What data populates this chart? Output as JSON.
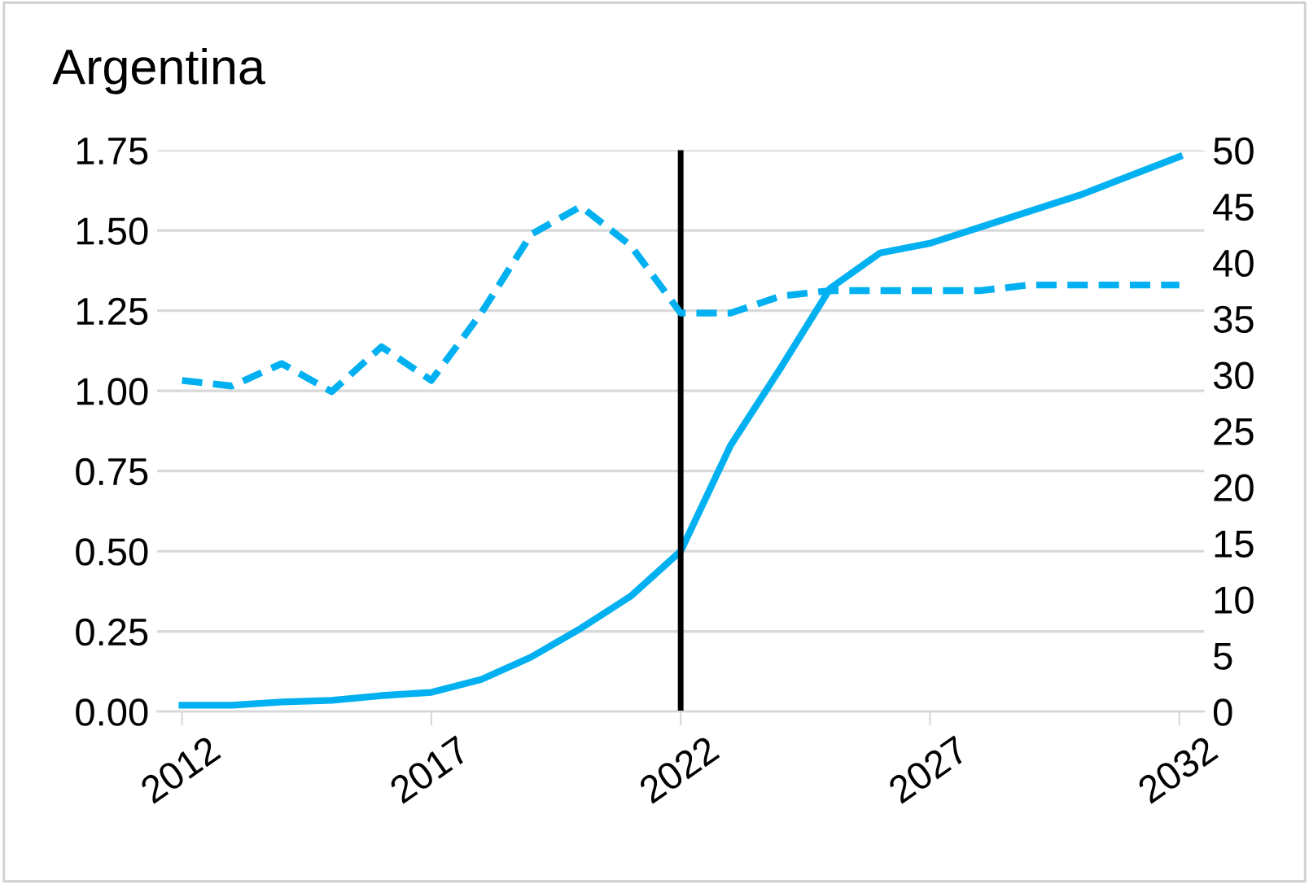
{
  "chart_data": {
    "type": "line",
    "title": "Argentina",
    "x": [
      2012,
      2013,
      2014,
      2015,
      2016,
      2017,
      2018,
      2019,
      2020,
      2021,
      2022,
      2023,
      2024,
      2025,
      2026,
      2027,
      2028,
      2029,
      2030,
      2031,
      2032
    ],
    "series": [
      {
        "color": "#00b0f0",
        "line_style": "solid",
        "values": [
          0.02,
          0.02,
          0.03,
          0.035,
          0.05,
          0.06,
          0.1,
          0.17,
          0.26,
          0.36,
          0.5,
          0.83,
          1.07,
          1.32,
          1.43,
          1.46,
          1.51,
          1.56,
          1.61,
          1.67,
          1.73
        ]
      },
      {
        "color": "#00b0f0",
        "line_style": "dashed",
        "axis": "y2",
        "values": [
          29.5,
          29,
          31,
          28.5,
          32.5,
          29.5,
          35.5,
          42.5,
          45,
          41.5,
          35.5,
          35.5,
          37,
          37.5,
          37.5,
          37.5,
          37.5,
          38,
          38,
          38,
          38
        ]
      }
    ],
    "xlim": [
      2011.5,
      2032.5
    ],
    "xticks": [
      2012,
      2017,
      2022,
      2027,
      2032
    ],
    "ylim": [
      0,
      1.75
    ],
    "yticks": [
      {
        "value": 0,
        "label": "0.00"
      },
      {
        "value": 0.25,
        "label": "0.25"
      },
      {
        "value": 0.5,
        "label": "0.50"
      },
      {
        "value": 0.75,
        "label": "0.75"
      },
      {
        "value": 1,
        "label": "1.00"
      },
      {
        "value": 1.25,
        "label": "1.25"
      },
      {
        "value": 1.5,
        "label": "1.50"
      },
      {
        "value": 1.75,
        "label": "1.75"
      }
    ],
    "y2lim": [
      0,
      50
    ],
    "y2ticks": [
      0,
      5,
      10,
      15,
      20,
      25,
      30,
      35,
      40,
      45,
      50
    ],
    "ref_lines": [
      {
        "axis": "x",
        "value": 2022,
        "color": "#000000"
      }
    ],
    "grid": "y",
    "legend": false,
    "marker": "none"
  }
}
